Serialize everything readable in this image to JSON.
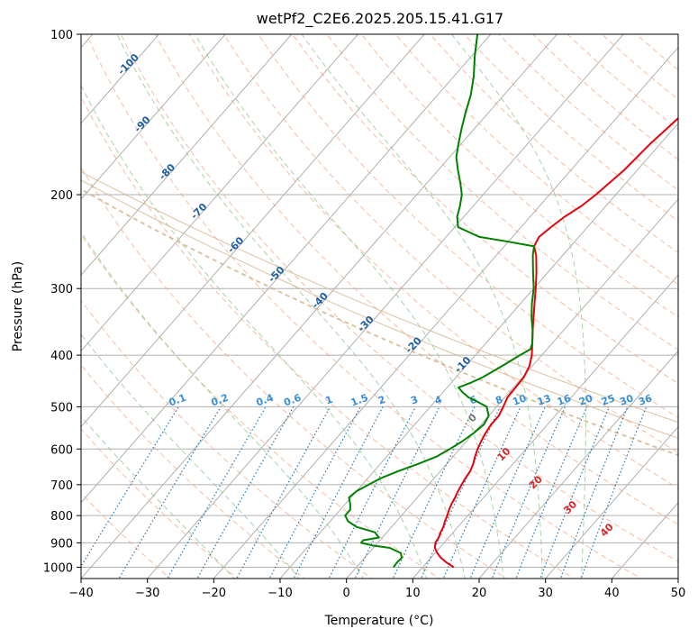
{
  "chart_data": {
    "type": "line",
    "subtype": "skew-t log-p",
    "title": "wetPf2_C2E6.2025.205.15.41.G17",
    "xlabel": "Temperature (°C)",
    "ylabel": "Pressure (hPa)",
    "xlim": [
      -40,
      50
    ],
    "ylim": [
      1050,
      100
    ],
    "y_scale": "log",
    "x_ticks": [
      -40,
      -30,
      -20,
      -10,
      0,
      10,
      20,
      30,
      40,
      50
    ],
    "x_tick_labels": [
      "−40",
      "−30",
      "−20",
      "−10",
      "0",
      "10",
      "20",
      "30",
      "40",
      "50"
    ],
    "y_ticks": [
      1000,
      900,
      800,
      700,
      600,
      500,
      400,
      300,
      200,
      100
    ],
    "y_tick_labels": [
      "1000",
      "900",
      "800",
      "700",
      "600",
      "500",
      "400",
      "300",
      "200",
      "100"
    ],
    "grid": true,
    "series": [
      {
        "color": "#e8000b",
        "points": [
          [
            1000,
            14.7
          ],
          [
            980,
            13.0
          ],
          [
            960,
            11.5
          ],
          [
            940,
            10.3
          ],
          [
            920,
            9.3
          ],
          [
            900,
            8.7
          ],
          [
            880,
            8.5
          ],
          [
            860,
            8.1
          ],
          [
            840,
            7.8
          ],
          [
            820,
            7.3
          ],
          [
            800,
            6.9
          ],
          [
            780,
            6.4
          ],
          [
            760,
            6.0
          ],
          [
            740,
            5.7
          ],
          [
            720,
            5.3
          ],
          [
            700,
            5.0
          ],
          [
            680,
            4.7
          ],
          [
            660,
            4.5
          ],
          [
            640,
            4.0
          ],
          [
            620,
            3.3
          ],
          [
            600,
            2.7
          ],
          [
            580,
            2.2
          ],
          [
            560,
            1.8
          ],
          [
            540,
            1.5
          ],
          [
            520,
            1.5
          ],
          [
            500,
            1.0
          ],
          [
            480,
            0.4
          ],
          [
            460,
            0.3
          ],
          [
            440,
            0.2
          ],
          [
            420,
            -0.4
          ],
          [
            400,
            -1.5
          ],
          [
            380,
            -3.0
          ],
          [
            360,
            -4.6
          ],
          [
            340,
            -6.2
          ],
          [
            320,
            -7.9
          ],
          [
            300,
            -9.7
          ],
          [
            280,
            -11.7
          ],
          [
            260,
            -14.0
          ],
          [
            250,
            -15.5
          ],
          [
            240,
            -16.0
          ],
          [
            230,
            -15.5
          ],
          [
            220,
            -14.8
          ],
          [
            210,
            -13.7
          ],
          [
            200,
            -13.0
          ],
          [
            180,
            -12.0
          ],
          [
            160,
            -11.5
          ],
          [
            150,
            -11.0
          ],
          [
            140,
            -10.5
          ],
          [
            130,
            -10.6
          ],
          [
            120,
            -11.3
          ],
          [
            110,
            -12.5
          ],
          [
            100,
            -14.0
          ]
        ]
      },
      {
        "color": "#008000",
        "points": [
          [
            1000,
            5.6
          ],
          [
            980,
            5.5
          ],
          [
            960,
            5.6
          ],
          [
            940,
            4.8
          ],
          [
            920,
            2.5
          ],
          [
            910,
            -0.5
          ],
          [
            900,
            -2.5
          ],
          [
            890,
            -2.5
          ],
          [
            880,
            -0.5
          ],
          [
            860,
            -1.8
          ],
          [
            840,
            -5.3
          ],
          [
            820,
            -7.3
          ],
          [
            800,
            -8.5
          ],
          [
            780,
            -8.5
          ],
          [
            760,
            -9.3
          ],
          [
            740,
            -10.3
          ],
          [
            720,
            -10.0
          ],
          [
            700,
            -9.0
          ],
          [
            680,
            -8.0
          ],
          [
            660,
            -6.3
          ],
          [
            640,
            -4.3
          ],
          [
            620,
            -2.5
          ],
          [
            600,
            -1.5
          ],
          [
            580,
            -0.6
          ],
          [
            560,
            0.0
          ],
          [
            540,
            0.4
          ],
          [
            520,
            0.0
          ],
          [
            500,
            -1.5
          ],
          [
            490,
            -3.4
          ],
          [
            480,
            -5.5
          ],
          [
            470,
            -7.0
          ],
          [
            460,
            -8.3
          ],
          [
            450,
            -7.0
          ],
          [
            440,
            -6.0
          ],
          [
            420,
            -4.6
          ],
          [
            400,
            -3.3
          ],
          [
            390,
            -2.5
          ],
          [
            380,
            -3.0
          ],
          [
            360,
            -4.6
          ],
          [
            340,
            -6.5
          ],
          [
            320,
            -8.3
          ],
          [
            300,
            -10.0
          ],
          [
            280,
            -12.2
          ],
          [
            260,
            -14.5
          ],
          [
            250,
            -15.5
          ],
          [
            245,
            -20.0
          ],
          [
            240,
            -25.0
          ],
          [
            230,
            -29.5
          ],
          [
            220,
            -31.0
          ],
          [
            210,
            -32.0
          ],
          [
            200,
            -33.2
          ],
          [
            190,
            -35.0
          ],
          [
            180,
            -37.0
          ],
          [
            170,
            -39.0
          ],
          [
            160,
            -40.5
          ],
          [
            150,
            -42.0
          ],
          [
            140,
            -43.5
          ],
          [
            130,
            -45.0
          ],
          [
            120,
            -47.0
          ],
          [
            110,
            -49.5
          ],
          [
            100,
            -52.0
          ]
        ]
      }
    ],
    "dry_adiabat_labels": [
      "-100",
      "-90",
      "-80",
      "-70",
      "-60",
      "-50",
      "-40",
      "-30",
      "-20",
      "-10",
      "0",
      "10",
      "20",
      "30",
      "40"
    ],
    "mixing_ratio_labels": [
      "0.1",
      "0.2",
      "0.4",
      "0.6",
      "1",
      "1.5",
      "2",
      "3",
      "4",
      "6",
      "8",
      "10",
      "13",
      "16",
      "20",
      "25",
      "30",
      "36"
    ],
    "colors": {
      "temperature": "#e8000b",
      "dewpoint": "#008000",
      "dry_adiabat": "#f4a582",
      "moist_adiabat": "#8fc98f",
      "mixing_ratio": "#1f77b4",
      "isotherm": "#808080",
      "wet_bulb_label": "#2e5e9e",
      "wet_label_negative": "#1f5fa0",
      "moist_label_positive": "#d62728",
      "boundary": "#d2b48c"
    }
  }
}
